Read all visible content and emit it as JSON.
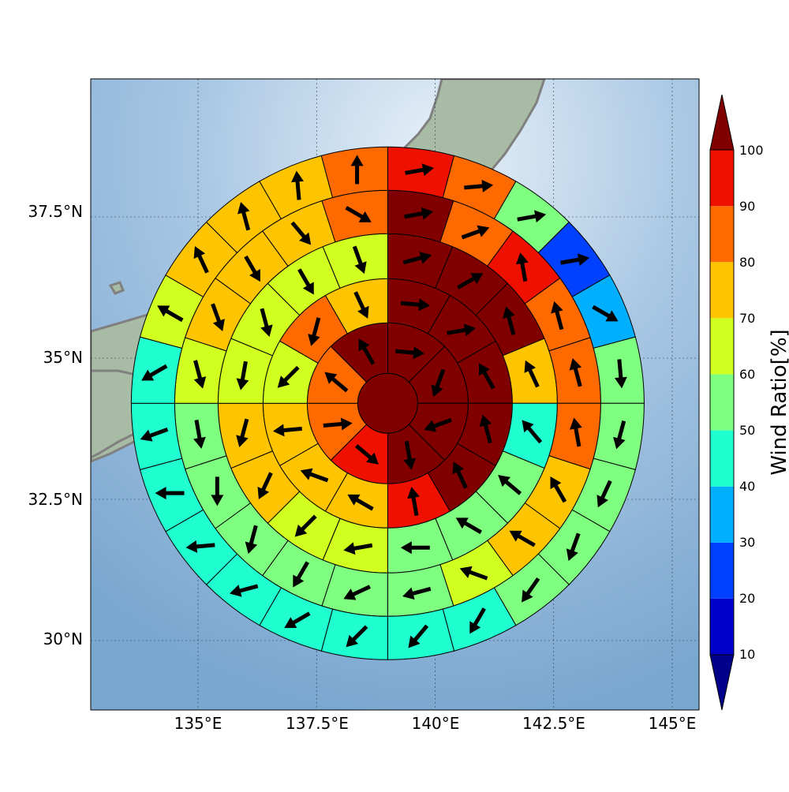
{
  "map": {
    "lon_ticks": [
      "135°E",
      "137.5°E",
      "140°E",
      "142.5°E",
      "145°E"
    ],
    "lat_ticks": [
      "37.5°N",
      "35°N",
      "32.5°N",
      "30°N"
    ],
    "lon_values": [
      135,
      137.5,
      140,
      142.5,
      145
    ],
    "lat_values": [
      37.5,
      35,
      32.5,
      30
    ],
    "center": {
      "lon": 139.0,
      "lat": 34.2
    },
    "colors": {
      "sea_light": "#d6e6f3",
      "sea_dark": "#7ba7cf",
      "land": "#a9bfa6",
      "coastline": "#808080"
    }
  },
  "colorbar": {
    "label": "Wind Ratio[%]",
    "tick_labels": [
      "10",
      "20",
      "30",
      "40",
      "50",
      "60",
      "70",
      "80",
      "90",
      "100"
    ],
    "levels": [
      10,
      20,
      30,
      40,
      50,
      60,
      70,
      80,
      90,
      100
    ],
    "colors": [
      "#0000cd",
      "#0040ff",
      "#00b0ff",
      "#20ffd0",
      "#7fff7f",
      "#d0ff20",
      "#ffc400",
      "#ff6a00",
      "#f01000"
    ],
    "under_color": "#00008b",
    "over_color": "#800000"
  },
  "rings": [
    {
      "sectors": 1,
      "values": [
        100
      ],
      "arrows": []
    },
    {
      "sectors": 8,
      "values": [
        100,
        100,
        100,
        100,
        95,
        85,
        85,
        100
      ],
      "arrows": [
        95,
        200,
        250,
        170,
        130,
        85,
        310,
        330
      ]
    },
    {
      "sectors": 12,
      "values": [
        100,
        100,
        100,
        100,
        100,
        95,
        75,
        75,
        75,
        65,
        80,
        75
      ],
      "arrows": [
        95,
        80,
        330,
        345,
        335,
        350,
        300,
        290,
        265,
        225,
        195,
        155
      ]
    },
    {
      "sectors": 16,
      "values": [
        100,
        100,
        100,
        75,
        45,
        55,
        55,
        55,
        65,
        65,
        75,
        75,
        65,
        65,
        60,
        60
      ],
      "arrows": [
        75,
        60,
        345,
        335,
        320,
        310,
        300,
        270,
        260,
        225,
        205,
        195,
        190,
        165,
        150,
        160
      ]
    },
    {
      "sectors": 20,
      "values": [
        100,
        80,
        95,
        80,
        80,
        80,
        75,
        70,
        60,
        50,
        50,
        50,
        50,
        55,
        55,
        65,
        70,
        75,
        75,
        80
      ],
      "arrows": [
        80,
        70,
        350,
        345,
        345,
        350,
        330,
        300,
        290,
        255,
        245,
        210,
        195,
        180,
        170,
        165,
        160,
        150,
        140,
        120
      ]
    },
    {
      "sectors": 24,
      "values": [
        95,
        80,
        55,
        20,
        30,
        55,
        55,
        50,
        50,
        50,
        45,
        40,
        40,
        45,
        45,
        45,
        40,
        45,
        45,
        65,
        70,
        75,
        75,
        80
      ],
      "arrows": [
        80,
        85,
        80,
        80,
        120,
        175,
        195,
        205,
        200,
        215,
        210,
        220,
        225,
        240,
        255,
        265,
        270,
        250,
        240,
        300,
        335,
        345,
        355,
        360
      ]
    }
  ]
}
